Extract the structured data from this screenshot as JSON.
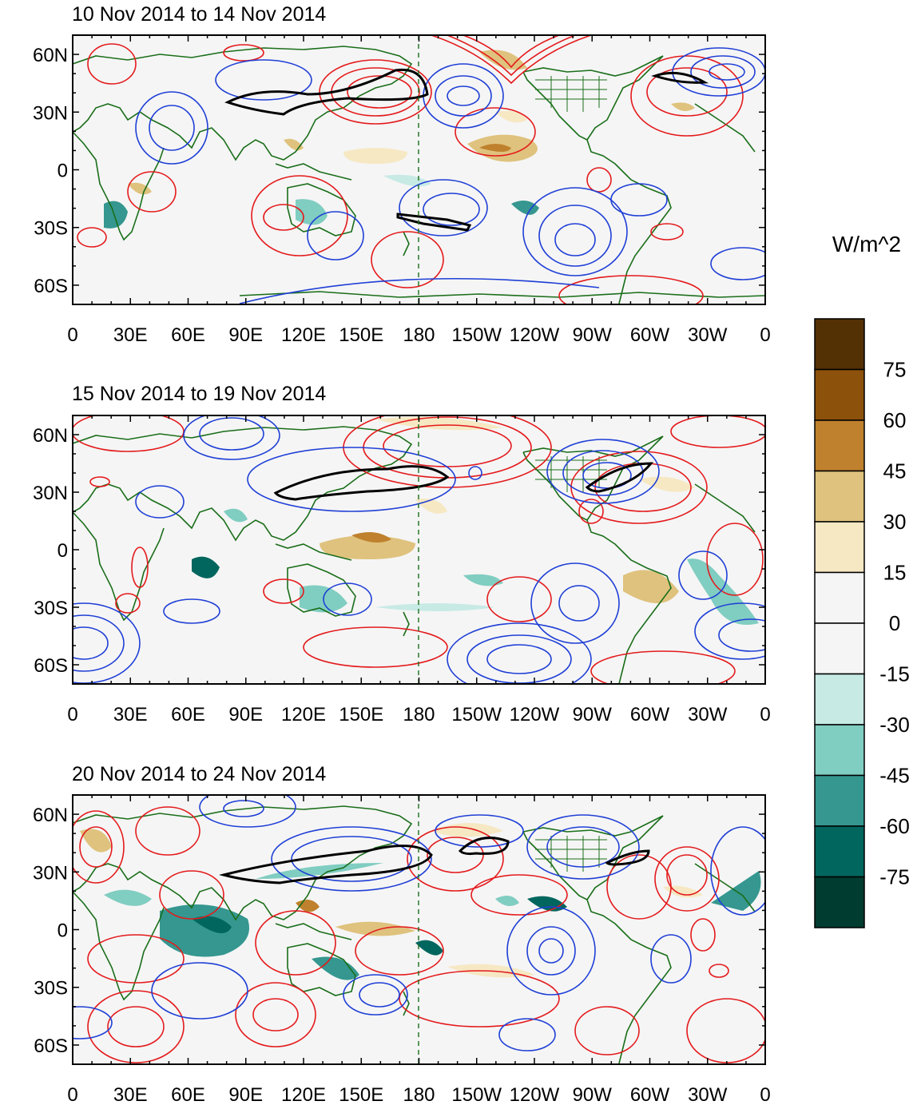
{
  "figure": {
    "panels": [
      {
        "title": "10 Nov 2014 to 14 Nov 2014"
      },
      {
        "title": "15 Nov 2014 to 19 Nov 2014"
      },
      {
        "title": "20 Nov 2014 to 24 Nov 2014"
      }
    ],
    "lat_labels": [
      "60N",
      "30N",
      "0",
      "30S",
      "60S"
    ],
    "lon_labels": [
      "0",
      "30E",
      "60E",
      "90E",
      "120E",
      "150E",
      "180",
      "150W",
      "120W",
      "90W",
      "60W",
      "30W",
      "0"
    ],
    "colorbar": {
      "unit": "W/m^2",
      "tick_labels": [
        "75",
        "60",
        "45",
        "30",
        "15",
        "0",
        "-15",
        "-30",
        "-45",
        "-60",
        "-75"
      ],
      "colors": [
        "#543005",
        "#8c510a",
        "#bf812d",
        "#dfc27d",
        "#f6e8c3",
        "#f5f5f5",
        "#f5f5f5",
        "#c7eae5",
        "#80cdc1",
        "#35978f",
        "#01665e",
        "#003c30"
      ]
    },
    "colors": {
      "land_outline": "#1a6e1a",
      "positive_contour": "#e41a1c",
      "negative_contour": "#1f3fd6",
      "jet_contour": "#000000",
      "dateline": "#1a6e1a"
    }
  }
}
